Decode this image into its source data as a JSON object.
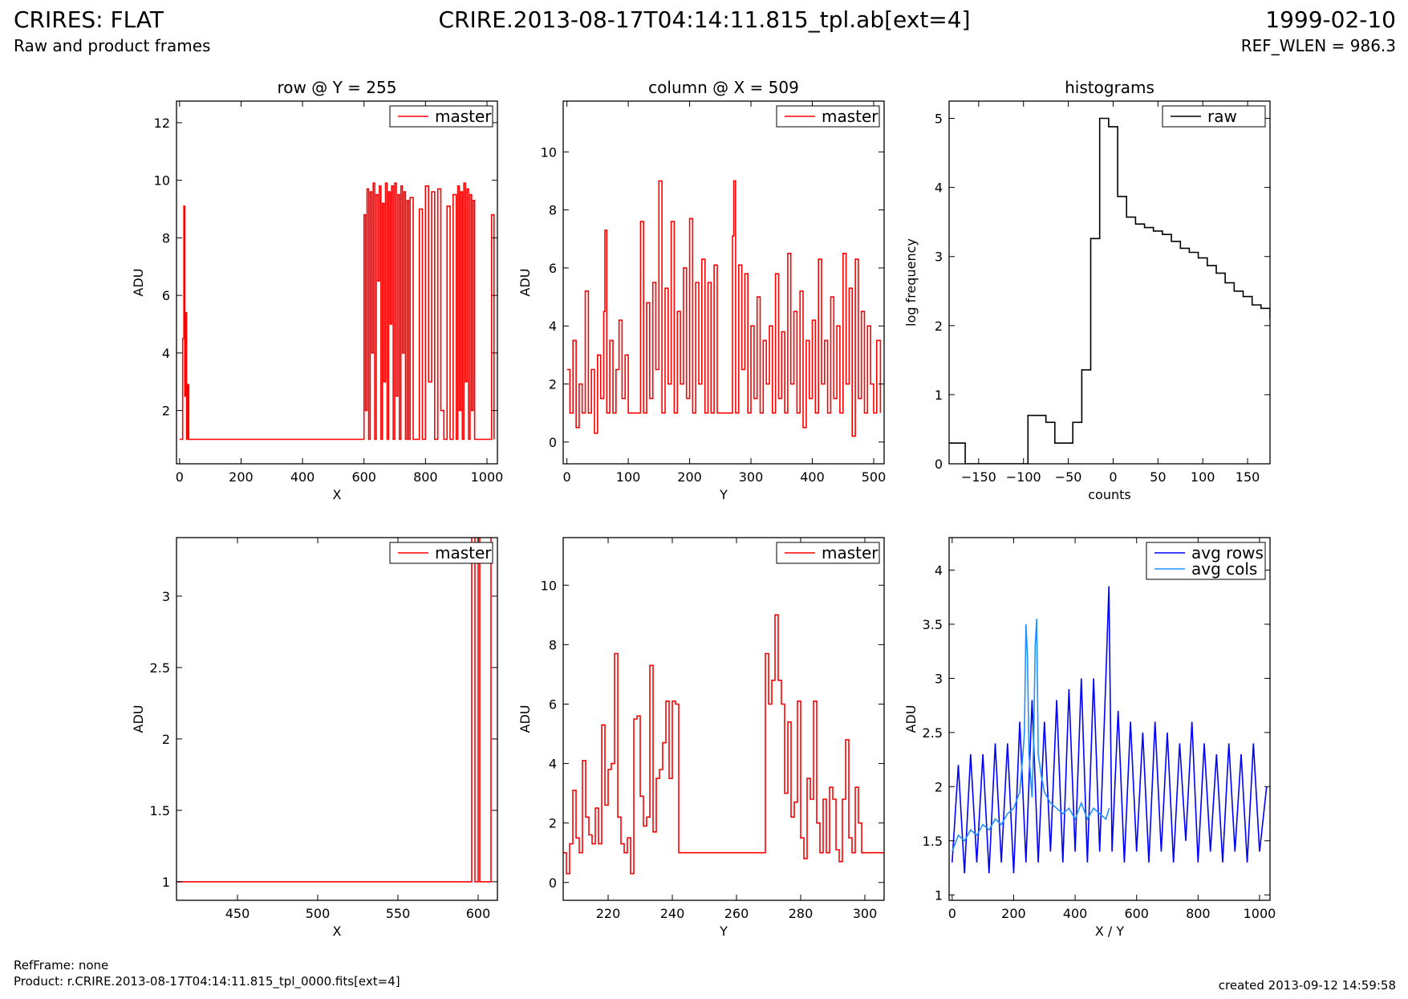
{
  "header": {
    "left_title": "CRIRES: FLAT",
    "left_subtitle": "Raw and product frames",
    "center_title": "CRIRE.2013-08-17T04:14:11.815_tpl.ab[ext=4]",
    "right_title": "1999-02-10",
    "right_subtitle": "REF_WLEN = 986.3"
  },
  "footer": {
    "ref_frame": "RefFrame: none",
    "product": "Product: r.CRIRE.2013-08-17T04:14:11.815_tpl_0000.fits[ext=4]",
    "created": "created 2013-09-12 14:59:58"
  },
  "colors": {
    "master": "#ff0000",
    "raw": "#000000",
    "avg_rows": "#0000ff",
    "avg_cols": "#1e90ff"
  },
  "chart_data": [
    {
      "id": "row",
      "type": "line",
      "title": "row @ Y = 255",
      "xlabel": "X",
      "ylabel": "ADU",
      "xlim": [
        -10,
        1034
      ],
      "ylim": [
        0.15,
        12.75
      ],
      "xticks": [
        0,
        200,
        400,
        600,
        800,
        1000
      ],
      "yticks": [
        2,
        4,
        6,
        8,
        10,
        12
      ],
      "legend": "top-right",
      "series": [
        {
          "name": "master",
          "color": "#ff0000",
          "style": "steps",
          "x": [
            0,
            10,
            14,
            17,
            20,
            23,
            26,
            30,
            300,
            598,
            600,
            605,
            610,
            615,
            620,
            625,
            630,
            635,
            640,
            645,
            650,
            655,
            660,
            665,
            670,
            675,
            680,
            685,
            690,
            695,
            700,
            705,
            710,
            715,
            720,
            725,
            730,
            735,
            740,
            745,
            750,
            760,
            770,
            780,
            790,
            800,
            810,
            820,
            830,
            840,
            850,
            860,
            870,
            880,
            890,
            900,
            905,
            910,
            915,
            920,
            925,
            930,
            935,
            940,
            945,
            950,
            955,
            960,
            1000,
            1015,
            1023
          ],
          "y": [
            1.0,
            4.5,
            9.1,
            2.5,
            5.4,
            1.0,
            2.9,
            1.0,
            1.0,
            1.0,
            8.8,
            2.0,
            9.7,
            1.0,
            9.6,
            4.0,
            9.9,
            1.0,
            9.5,
            6.5,
            9.8,
            1.0,
            9.2,
            3.0,
            9.9,
            1.0,
            9.6,
            5.0,
            9.8,
            1.0,
            9.9,
            2.5,
            9.5,
            1.0,
            9.8,
            4.0,
            9.6,
            1.0,
            9.3,
            1.0,
            9.4,
            1.0,
            1.0,
            9.0,
            1.0,
            9.8,
            3.0,
            9.6,
            1.0,
            9.7,
            2.0,
            1.0,
            9.1,
            1.0,
            9.5,
            1.0,
            9.8,
            2.0,
            9.6,
            1.0,
            9.9,
            3.0,
            9.7,
            1.0,
            9.5,
            2.0,
            9.3,
            1.0,
            1.0,
            8.8,
            1.0
          ]
        }
      ]
    },
    {
      "id": "column",
      "type": "line",
      "title": "column @ X = 509",
      "xlabel": "Y",
      "ylabel": "ADU",
      "xlim": [
        -6,
        517
      ],
      "ylim": [
        -0.75,
        11.75
      ],
      "xticks": [
        0,
        100,
        200,
        300,
        400,
        500
      ],
      "yticks": [
        0,
        2,
        4,
        6,
        8,
        10
      ],
      "legend": "top-right",
      "series": [
        {
          "name": "master",
          "color": "#ff0000",
          "style": "steps",
          "x": [
            0,
            5,
            10,
            15,
            20,
            25,
            30,
            35,
            40,
            45,
            50,
            55,
            60,
            62,
            65,
            70,
            75,
            80,
            85,
            90,
            95,
            100,
            105,
            110,
            115,
            120,
            125,
            130,
            135,
            140,
            145,
            150,
            155,
            160,
            165,
            170,
            175,
            180,
            185,
            190,
            195,
            200,
            205,
            210,
            215,
            220,
            225,
            230,
            235,
            240,
            245,
            270,
            272,
            275,
            280,
            285,
            290,
            295,
            300,
            305,
            310,
            315,
            320,
            325,
            330,
            335,
            340,
            345,
            350,
            355,
            360,
            365,
            370,
            375,
            380,
            385,
            390,
            395,
            400,
            405,
            410,
            415,
            420,
            425,
            430,
            435,
            440,
            445,
            450,
            455,
            460,
            465,
            470,
            475,
            480,
            485,
            490,
            495,
            500,
            505,
            511
          ],
          "y": [
            2.5,
            1.0,
            3.5,
            0.5,
            2.0,
            1.0,
            5.2,
            1.0,
            2.5,
            0.3,
            3.0,
            1.5,
            4.5,
            7.3,
            1.0,
            3.5,
            1.0,
            2.5,
            4.2,
            1.5,
            3.0,
            1.0,
            1.0,
            1.0,
            1.0,
            7.6,
            1.0,
            4.8,
            1.5,
            5.5,
            2.5,
            9.0,
            1.0,
            5.3,
            2.0,
            7.6,
            1.0,
            4.5,
            2.0,
            6.0,
            1.5,
            7.7,
            1.0,
            5.5,
            2.0,
            6.3,
            1.0,
            5.5,
            1.0,
            6.1,
            1.0,
            7.1,
            9.0,
            1.0,
            6.1,
            2.5,
            5.8,
            1.0,
            4.0,
            1.5,
            5.0,
            1.0,
            3.5,
            2.0,
            4.0,
            1.0,
            5.8,
            1.5,
            3.8,
            1.0,
            6.5,
            2.0,
            4.5,
            1.0,
            5.2,
            0.5,
            3.5,
            1.5,
            4.2,
            1.0,
            6.3,
            2.0,
            3.5,
            1.0,
            5.0,
            1.5,
            4.0,
            1.0,
            6.5,
            2.0,
            5.3,
            0.2,
            6.3,
            1.5,
            4.5,
            1.0,
            4.0,
            2.0,
            1.0,
            3.5,
            1.0
          ]
        }
      ]
    },
    {
      "id": "histograms",
      "type": "line",
      "title": "histograms",
      "xlabel": "counts",
      "ylabel": "log frequency",
      "xlim": [
        -183,
        175
      ],
      "ylim": [
        0,
        5.25
      ],
      "xticks": [
        -150,
        -100,
        -50,
        0,
        50,
        100,
        150
      ],
      "yticks": [
        0,
        1,
        2,
        3,
        4,
        5
      ],
      "legend": "top-right",
      "series": [
        {
          "name": "raw",
          "color": "#000000",
          "style": "steps",
          "x": [
            -183,
            -165,
            -155,
            -145,
            -135,
            -125,
            -115,
            -105,
            -95,
            -85,
            -75,
            -65,
            -55,
            -45,
            -35,
            -25,
            -15,
            -5,
            5,
            15,
            25,
            35,
            45,
            55,
            65,
            75,
            85,
            95,
            105,
            115,
            125,
            135,
            145,
            155,
            165,
            175
          ],
          "y": [
            0.3,
            0.0,
            0.0,
            0.0,
            0.0,
            0.0,
            0.0,
            0.0,
            0.7,
            0.7,
            0.6,
            0.3,
            0.3,
            0.6,
            1.36,
            3.26,
            5.0,
            4.88,
            3.87,
            3.57,
            3.47,
            3.42,
            3.37,
            3.32,
            3.22,
            3.12,
            3.06,
            2.98,
            2.87,
            2.76,
            2.62,
            2.5,
            2.42,
            2.3,
            2.25,
            2.1
          ]
        }
      ]
    },
    {
      "id": "row-zoom",
      "type": "line",
      "title": "",
      "xlabel": "X",
      "ylabel": "ADU",
      "xlim": [
        412,
        612
      ],
      "ylim": [
        0.87,
        3.41
      ],
      "xticks": [
        450,
        500,
        550,
        600
      ],
      "yticks": [
        1.0,
        1.5,
        2.0,
        2.5,
        3.0
      ],
      "legend": "top-right",
      "series": [
        {
          "name": "master",
          "color": "#ff0000",
          "style": "steps",
          "x": [
            412,
            594,
            596,
            598,
            600,
            601,
            606,
            608,
            612
          ],
          "y": [
            1.0,
            1.0,
            3.6,
            1.0,
            3.6,
            1.0,
            1.0,
            3.6,
            3.6
          ]
        }
      ]
    },
    {
      "id": "column-zoom",
      "type": "line",
      "title": "",
      "xlabel": "Y",
      "ylabel": "ADU",
      "xlim": [
        206,
        306
      ],
      "ylim": [
        -0.6,
        11.6
      ],
      "xticks": [
        220,
        240,
        260,
        280,
        300
      ],
      "yticks": [
        0,
        2,
        4,
        6,
        8,
        10
      ],
      "legend": "top-right",
      "series": [
        {
          "name": "master",
          "color": "#ff0000",
          "style": "steps",
          "x": [
            206,
            207,
            208,
            209,
            210,
            211,
            212,
            213,
            214,
            215,
            216,
            217,
            218,
            219,
            220,
            221,
            222,
            223,
            224,
            225,
            226,
            227,
            228,
            229,
            230,
            231,
            232,
            233,
            234,
            235,
            236,
            237,
            238,
            239,
            240,
            241,
            242,
            243,
            269,
            270,
            271,
            272,
            273,
            274,
            275,
            276,
            277,
            278,
            279,
            280,
            281,
            282,
            283,
            284,
            285,
            286,
            287,
            288,
            289,
            290,
            291,
            292,
            293,
            294,
            295,
            296,
            297,
            298,
            299,
            300,
            306
          ],
          "y": [
            1.0,
            0.3,
            1.3,
            3.1,
            1.5,
            1.0,
            4.1,
            2.2,
            1.6,
            1.3,
            2.5,
            1.3,
            5.3,
            2.6,
            3.8,
            4.0,
            7.7,
            2.2,
            1.3,
            1.0,
            1.5,
            0.3,
            5.5,
            5.6,
            2.9,
            1.9,
            2.2,
            7.3,
            1.7,
            3.5,
            3.8,
            4.7,
            6.1,
            3.5,
            6.1,
            6.0,
            1.0,
            1.0,
            7.7,
            6.0,
            6.8,
            9.0,
            6.8,
            6.0,
            3.0,
            5.4,
            2.2,
            2.7,
            6.1,
            1.5,
            0.8,
            3.5,
            2.8,
            6.1,
            2.0,
            1.0,
            2.8,
            1.0,
            3.2,
            2.8,
            1.1,
            0.7,
            2.8,
            4.8,
            1.5,
            1.0,
            3.2,
            2.0,
            1.0,
            1.0,
            1.0
          ]
        }
      ]
    },
    {
      "id": "averages",
      "type": "line",
      "title": "",
      "xlabel": "X / Y",
      "ylabel": "ADU",
      "xlim": [
        -10,
        1034
      ],
      "ylim": [
        0.95,
        4.3
      ],
      "xticks": [
        0,
        200,
        400,
        600,
        800,
        1000
      ],
      "yticks": [
        1.0,
        1.5,
        2.0,
        2.5,
        3.0,
        3.5,
        4.0
      ],
      "legend": "top-right",
      "series": [
        {
          "name": "avg rows",
          "color": "#0000ff",
          "style": "line",
          "x": [
            0,
            20,
            40,
            60,
            80,
            100,
            120,
            140,
            160,
            180,
            200,
            220,
            240,
            260,
            280,
            300,
            320,
            340,
            360,
            380,
            400,
            420,
            440,
            460,
            480,
            500,
            510,
            520,
            540,
            560,
            580,
            600,
            620,
            640,
            660,
            680,
            700,
            720,
            740,
            760,
            780,
            800,
            820,
            840,
            860,
            880,
            900,
            920,
            940,
            960,
            980,
            1000,
            1023
          ],
          "y": [
            1.3,
            2.2,
            1.2,
            2.3,
            1.3,
            2.3,
            1.2,
            2.4,
            1.3,
            2.4,
            1.2,
            2.6,
            1.3,
            2.8,
            1.3,
            2.6,
            1.4,
            2.8,
            1.3,
            2.9,
            1.4,
            3.0,
            1.3,
            3.0,
            1.4,
            3.0,
            3.85,
            1.4,
            2.7,
            1.3,
            2.6,
            1.4,
            2.5,
            1.3,
            2.6,
            1.4,
            2.5,
            1.3,
            2.4,
            1.5,
            2.6,
            1.3,
            2.4,
            1.4,
            2.3,
            1.3,
            2.4,
            1.4,
            2.3,
            1.3,
            2.4,
            1.4,
            2.0
          ]
        },
        {
          "name": "avg cols",
          "color": "#1e90ff",
          "style": "line",
          "x": [
            0,
            20,
            40,
            60,
            80,
            100,
            120,
            140,
            160,
            180,
            200,
            220,
            230,
            235,
            240,
            245,
            250,
            255,
            260,
            265,
            270,
            275,
            280,
            290,
            300,
            320,
            340,
            360,
            380,
            400,
            420,
            440,
            460,
            480,
            500,
            511
          ],
          "y": [
            1.4,
            1.55,
            1.5,
            1.6,
            1.55,
            1.65,
            1.6,
            1.7,
            1.65,
            1.75,
            1.8,
            1.95,
            2.3,
            2.5,
            3.5,
            3.2,
            2.3,
            2.1,
            1.9,
            2.4,
            3.3,
            3.55,
            2.3,
            2.1,
            1.95,
            1.85,
            1.8,
            1.75,
            1.8,
            1.7,
            1.85,
            1.7,
            1.8,
            1.75,
            1.7,
            1.8
          ]
        }
      ]
    }
  ]
}
